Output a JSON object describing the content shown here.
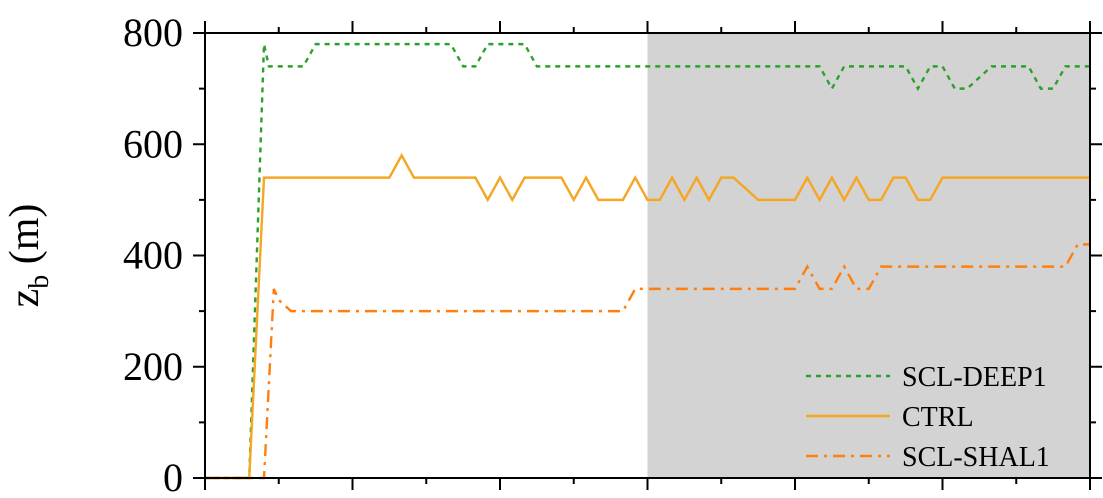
{
  "chart_data": {
    "type": "line",
    "title": "",
    "xlabel": "",
    "ylabel": {
      "main": "z",
      "subscript": "b",
      "unit": " (m)"
    },
    "xlim": [
      0,
      6
    ],
    "ylim": [
      0,
      800
    ],
    "yticks": [
      0,
      200,
      400,
      600,
      800
    ],
    "ytick_labels": [
      "0",
      "200",
      "400",
      "600",
      "800"
    ],
    "shaded_region": {
      "x_start": 3.0,
      "x_end": 6.0,
      "color": "#d3d3d3"
    },
    "legend_position": "bottom-right",
    "series": [
      {
        "name": "SCL-DEEP1",
        "color": "#2ca02c",
        "style": "dotted",
        "x": [
          0,
          0.3,
          0.4,
          0.4167,
          0.4333,
          0.5,
          0.6667,
          0.75,
          1.0,
          1.6667,
          1.75,
          1.8333,
          1.9167,
          2.0,
          2.1667,
          2.25,
          3.0,
          4.0,
          4.1667,
          4.25,
          4.3333,
          4.5,
          4.75,
          4.8333,
          4.9167,
          5.0,
          5.0833,
          5.1667,
          5.3333,
          5.5833,
          5.6667,
          5.75,
          5.8333,
          6.0
        ],
        "values": [
          0,
          0,
          780,
          760,
          740,
          740,
          740,
          780,
          780,
          780,
          740,
          740,
          780,
          780,
          780,
          740,
          740,
          740,
          740,
          700,
          740,
          740,
          740,
          700,
          740,
          740,
          700,
          700,
          740,
          740,
          700,
          700,
          740,
          740
        ]
      },
      {
        "name": "CTRL",
        "color": "#f5a623",
        "style": "solid",
        "x": [
          0,
          0.3,
          0.4,
          1.25,
          1.3333,
          1.4167,
          1.75,
          1.8333,
          1.9167,
          2.0,
          2.0833,
          2.1667,
          2.25,
          2.4167,
          2.5,
          2.5833,
          2.6667,
          2.8333,
          2.9167,
          3.0,
          3.0833,
          3.1667,
          3.25,
          3.3333,
          3.4167,
          3.5,
          3.5833,
          3.75,
          3.8333,
          4.0,
          4.0833,
          4.1667,
          4.25,
          4.3333,
          4.4167,
          4.5,
          4.5833,
          4.6667,
          4.75,
          4.8333,
          4.9167,
          5.0,
          5.0833,
          6.0
        ],
        "values": [
          0,
          0,
          540,
          540,
          580,
          540,
          540,
          540,
          500,
          540,
          500,
          540,
          540,
          540,
          500,
          540,
          500,
          500,
          540,
          500,
          500,
          540,
          500,
          540,
          500,
          540,
          540,
          500,
          500,
          500,
          540,
          500,
          540,
          500,
          540,
          500,
          500,
          540,
          540,
          500,
          500,
          540,
          540,
          540
        ]
      },
      {
        "name": "SCL-SHAL1",
        "color": "#ff7f0e",
        "style": "dashdot",
        "x": [
          0,
          0.4,
          0.4667,
          0.5,
          0.5833,
          2.8333,
          2.9167,
          3.0,
          4.0,
          4.0833,
          4.1667,
          4.25,
          4.3333,
          4.4167,
          4.5,
          4.5833,
          4.6667,
          5.8333,
          5.9167,
          6.0
        ],
        "values": [
          0,
          0,
          340,
          320,
          300,
          300,
          340,
          340,
          340,
          380,
          340,
          340,
          380,
          340,
          340,
          380,
          380,
          380,
          420,
          420
        ]
      }
    ]
  }
}
